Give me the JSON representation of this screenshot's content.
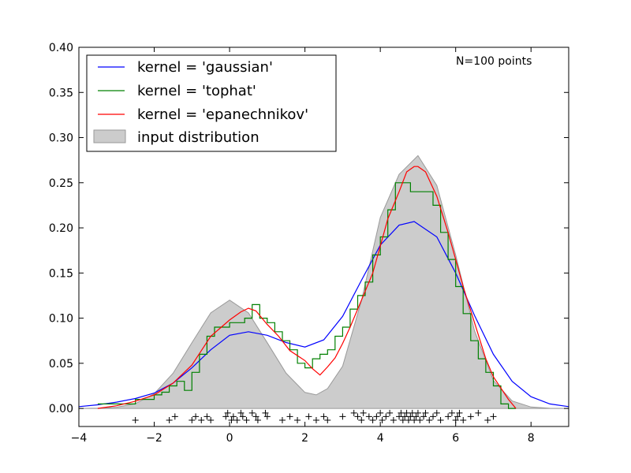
{
  "chart_data": {
    "type": "line",
    "xlim": [
      -4,
      9
    ],
    "ylim": [
      -0.02,
      0.4
    ],
    "x_ticks": [
      -4,
      -2,
      0,
      2,
      4,
      6,
      8
    ],
    "x_tick_labels": [
      "−4",
      "−2",
      "0",
      "2",
      "4",
      "6",
      "8"
    ],
    "y_ticks": [
      0.0,
      0.05,
      0.1,
      0.15,
      0.2,
      0.25,
      0.3,
      0.35,
      0.4
    ],
    "y_tick_labels": [
      "0.00",
      "0.05",
      "0.10",
      "0.15",
      "0.20",
      "0.25",
      "0.30",
      "0.35",
      "0.40"
    ],
    "grid": false,
    "legend_position": "top-left",
    "annotation": "N=100 points",
    "input_distribution": {
      "name": "input distribution",
      "color": "#cccccc",
      "edge_color": "#999999",
      "x": [
        -4.0,
        -3.5,
        -3.0,
        -2.5,
        -2.0,
        -1.5,
        -1.0,
        -0.5,
        0.0,
        0.5,
        1.0,
        1.5,
        2.0,
        2.3,
        2.6,
        3.0,
        3.5,
        4.0,
        4.5,
        5.0,
        5.5,
        6.0,
        6.5,
        7.0,
        7.5,
        8.0,
        8.5,
        9.0
      ],
      "y": [
        0.0,
        0.0003,
        0.0013,
        0.0053,
        0.0162,
        0.0389,
        0.0728,
        0.1059,
        0.12,
        0.1059,
        0.0728,
        0.039,
        0.0177,
        0.015,
        0.022,
        0.0468,
        0.1195,
        0.2116,
        0.2592,
        0.28,
        0.247,
        0.17,
        0.086,
        0.031,
        0.0083,
        0.0016,
        0.0002,
        0.0
      ]
    },
    "series": [
      {
        "name": "kernel = 'gaussian'",
        "color": "#0000ff",
        "x": [
          -4.0,
          -3.5,
          -3.0,
          -2.5,
          -2.0,
          -1.5,
          -1.0,
          -0.5,
          0.0,
          0.5,
          1.0,
          1.5,
          2.0,
          2.5,
          3.0,
          3.5,
          4.0,
          4.5,
          4.9,
          5.5,
          6.0,
          6.5,
          7.0,
          7.5,
          8.0,
          8.5,
          9.0
        ],
        "y": [
          0.002,
          0.004,
          0.007,
          0.011,
          0.017,
          0.028,
          0.045,
          0.065,
          0.081,
          0.085,
          0.081,
          0.073,
          0.068,
          0.076,
          0.102,
          0.142,
          0.181,
          0.203,
          0.207,
          0.19,
          0.15,
          0.103,
          0.06,
          0.03,
          0.013,
          0.005,
          0.002
        ]
      },
      {
        "name": "kernel = 'tophat'",
        "color": "#008000",
        "x": [
          -3.5,
          -3.0,
          -2.5,
          -2.0,
          -1.8,
          -1.6,
          -1.4,
          -1.2,
          -1.0,
          -0.8,
          -0.6,
          -0.4,
          -0.2,
          0.0,
          0.2,
          0.4,
          0.6,
          0.8,
          1.0,
          1.2,
          1.4,
          1.6,
          1.8,
          2.0,
          2.2,
          2.4,
          2.6,
          2.8,
          3.0,
          3.2,
          3.4,
          3.6,
          3.8,
          4.0,
          4.2,
          4.4,
          4.6,
          4.8,
          5.0,
          5.2,
          5.4,
          5.6,
          5.8,
          6.0,
          6.2,
          6.4,
          6.6,
          6.8,
          7.0,
          7.2,
          7.4
        ],
        "y": [
          0.005,
          0.005,
          0.01,
          0.015,
          0.018,
          0.025,
          0.03,
          0.02,
          0.04,
          0.06,
          0.08,
          0.09,
          0.09,
          0.095,
          0.095,
          0.1,
          0.115,
          0.1,
          0.095,
          0.085,
          0.075,
          0.065,
          0.05,
          0.045,
          0.055,
          0.06,
          0.065,
          0.08,
          0.09,
          0.11,
          0.125,
          0.14,
          0.17,
          0.19,
          0.22,
          0.25,
          0.25,
          0.24,
          0.24,
          0.24,
          0.225,
          0.195,
          0.165,
          0.135,
          0.105,
          0.075,
          0.055,
          0.04,
          0.025,
          0.005,
          0.0
        ]
      },
      {
        "name": "kernel = 'epanechnikov'",
        "color": "#ff0000",
        "x": [
          -3.5,
          -3.0,
          -2.5,
          -2.0,
          -1.5,
          -1.0,
          -0.5,
          0.0,
          0.3,
          0.5,
          0.7,
          1.0,
          1.3,
          1.6,
          2.0,
          2.2,
          2.4,
          2.6,
          2.8,
          3.0,
          3.2,
          3.5,
          3.8,
          4.0,
          4.2,
          4.5,
          4.7,
          4.9,
          5.0,
          5.2,
          5.5,
          5.8,
          6.0,
          6.2,
          6.5,
          6.8,
          7.0,
          7.4,
          7.6
        ],
        "y": [
          0.0,
          0.003,
          0.008,
          0.015,
          0.028,
          0.048,
          0.08,
          0.098,
          0.107,
          0.111,
          0.108,
          0.093,
          0.08,
          0.064,
          0.053,
          0.044,
          0.037,
          0.046,
          0.056,
          0.072,
          0.09,
          0.12,
          0.15,
          0.18,
          0.21,
          0.24,
          0.262,
          0.268,
          0.268,
          0.262,
          0.235,
          0.195,
          0.165,
          0.135,
          0.095,
          0.055,
          0.035,
          0.01,
          0.0
        ]
      }
    ],
    "samples": {
      "marker": "+",
      "color": "#000000",
      "x": [
        -2.5,
        -1.6,
        -1.45,
        -1.0,
        -0.9,
        -0.75,
        -0.6,
        -0.5,
        -0.1,
        -0.05,
        0.05,
        0.1,
        0.2,
        0.3,
        0.35,
        0.45,
        0.6,
        0.7,
        0.75,
        0.95,
        1.0,
        1.4,
        1.6,
        1.8,
        2.1,
        2.3,
        2.5,
        2.6,
        3.0,
        3.3,
        3.4,
        3.5,
        3.55,
        3.7,
        3.8,
        3.9,
        4.0,
        4.05,
        4.15,
        4.25,
        4.35,
        4.5,
        4.55,
        4.6,
        4.65,
        4.7,
        4.75,
        4.8,
        4.85,
        4.9,
        4.95,
        5.0,
        5.05,
        5.15,
        5.2,
        5.3,
        5.4,
        5.5,
        5.6,
        5.8,
        5.9,
        6.0,
        6.05,
        6.1,
        6.2,
        6.4,
        6.6,
        6.85,
        7.0
      ],
      "y": [
        -0.013,
        -0.013,
        -0.009,
        -0.013,
        -0.009,
        -0.013,
        -0.009,
        -0.013,
        -0.009,
        -0.005,
        -0.013,
        -0.009,
        -0.013,
        -0.005,
        -0.009,
        -0.013,
        -0.005,
        -0.009,
        -0.013,
        -0.005,
        -0.009,
        -0.013,
        -0.009,
        -0.013,
        -0.009,
        -0.013,
        -0.009,
        -0.013,
        -0.009,
        -0.005,
        -0.009,
        -0.013,
        -0.005,
        -0.009,
        -0.013,
        -0.009,
        -0.005,
        -0.013,
        -0.009,
        -0.005,
        -0.013,
        -0.009,
        -0.005,
        -0.013,
        -0.009,
        -0.005,
        -0.013,
        -0.009,
        -0.005,
        -0.013,
        -0.009,
        -0.005,
        -0.013,
        -0.009,
        -0.005,
        -0.013,
        -0.009,
        -0.005,
        -0.013,
        -0.009,
        -0.005,
        -0.013,
        -0.009,
        -0.005,
        -0.013,
        -0.009,
        -0.005,
        -0.013,
        -0.009
      ]
    }
  }
}
